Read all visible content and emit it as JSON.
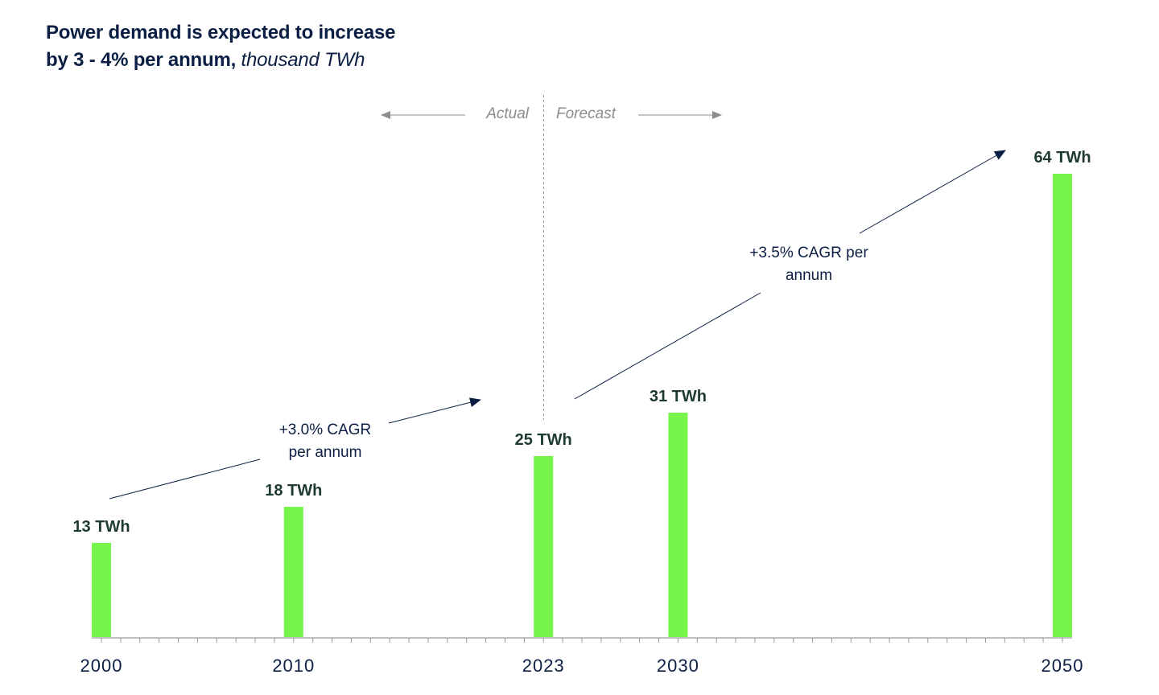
{
  "title_line1": "Power demand is expected to increase",
  "title_line2_bold": "by 3 - 4% per annum",
  "title_line2_sep": ",",
  "title_unit": "thousand TWh",
  "colors": {
    "bar": "#77f54a",
    "text_dark": "#0b1f44",
    "label": "#1f3a2e",
    "muted": "#8c8c8c"
  },
  "period_labels": {
    "actual": "Actual",
    "forecast": "Forecast"
  },
  "annotations": {
    "cagr_actual": [
      "+3.0% CAGR",
      "per annum"
    ],
    "cagr_forecast": [
      "+3.5% CAGR per",
      "annum"
    ]
  },
  "chart_data": {
    "type": "bar",
    "categories": [
      "2000",
      "2010",
      "2023",
      "2030",
      "2050"
    ],
    "x": [
      2000,
      2010,
      2023,
      2030,
      2050
    ],
    "values": [
      13,
      18,
      25,
      31,
      64
    ],
    "data_labels": [
      "13 TWh",
      "18 TWh",
      "25 TWh",
      "31 TWh",
      "64 TWh"
    ],
    "xlim": [
      2000,
      2050
    ],
    "divider_between": [
      2023,
      2030
    ],
    "grid": false,
    "legend": "none"
  }
}
